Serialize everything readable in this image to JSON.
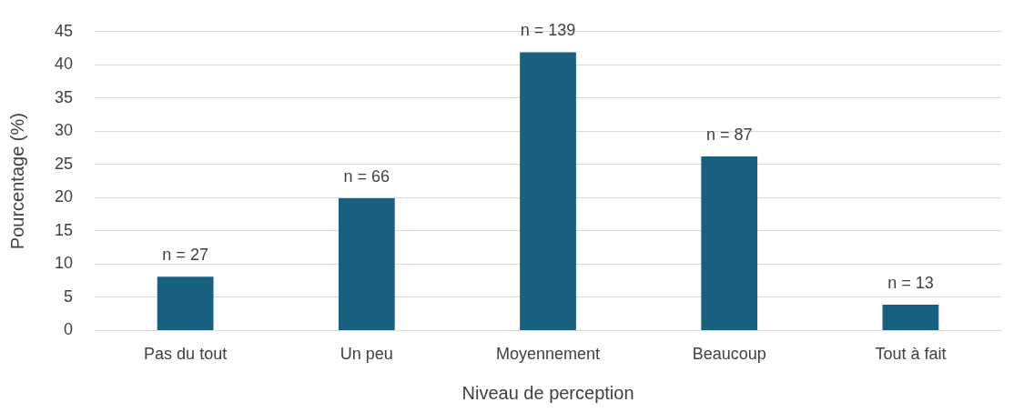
{
  "chart_data": {
    "type": "bar",
    "xlabel": "Niveau de perception",
    "ylabel": "Pourcentage (%)",
    "categories": [
      "Pas du tout",
      "Un peu",
      "Moyennement",
      "Beaucoup",
      "Tout à fait"
    ],
    "values": [
      8.1,
      19.9,
      41.9,
      26.2,
      3.9
    ],
    "annotations": [
      {
        "text": "n = 27",
        "x": "Pas du tout",
        "y": 8.1
      },
      {
        "text": "n = 66",
        "x": "Un peu",
        "y": 19.9
      },
      {
        "text": "n = 139",
        "x": "Moyennement",
        "y": 41.9
      },
      {
        "text": "n = 87",
        "x": "Beaucoup",
        "y": 26.2
      },
      {
        "text": "n = 13",
        "x": "Tout à fait",
        "y": 3.9
      }
    ],
    "color": "#17607f",
    "ylim": [
      0,
      45
    ],
    "yticks": [
      0,
      5,
      10,
      15,
      20,
      25,
      30,
      35,
      40,
      45
    ],
    "grid": "y",
    "legend": false
  }
}
